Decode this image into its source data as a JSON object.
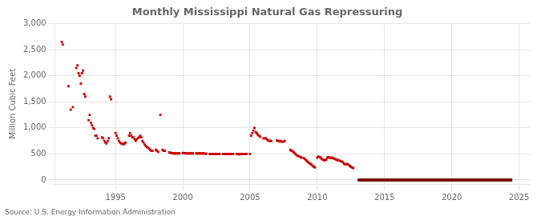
{
  "chart_data": {
    "type": "scatter",
    "title": "Monthly Mississippi Natural Gas Repressuring",
    "ylabel": "Million Cubic Feet",
    "annotations": [
      "Source: U.S. Energy Information Administration"
    ],
    "xlim": [
      1990.5,
      2025.8
    ],
    "xticks": [
      1995,
      2000,
      2005,
      2010,
      2015,
      2020,
      2025
    ],
    "ylim": [
      -80,
      3000
    ],
    "yticks": [
      0,
      500,
      {
        "value": 1000,
        "label": "1,000"
      },
      {
        "value": 1500,
        "label": "1,500"
      },
      {
        "value": 2000,
        "label": "2,000"
      },
      {
        "value": 2500,
        "label": "2,500"
      },
      {
        "value": 3000,
        "label": "3,000"
      }
    ],
    "grid": true,
    "series": [
      {
        "type": "scatter",
        "color": "#cc0000",
        "marker": "square",
        "x": [
          1991.0,
          1991.08,
          1991.5,
          1991.67,
          1991.83,
          1992.08,
          1992.17,
          1992.25,
          1992.33,
          1992.42,
          1992.5,
          1992.58,
          1992.67,
          1992.75,
          1993.0,
          1993.08,
          1993.17,
          1993.25,
          1993.33,
          1993.42,
          1993.5,
          1993.58,
          1993.67,
          1994.0,
          1994.08,
          1994.17,
          1994.25,
          1994.33,
          1994.42,
          1994.5,
          1994.58,
          1994.67,
          1995.0,
          1995.08,
          1995.17,
          1995.25,
          1995.33,
          1995.42,
          1995.5,
          1995.58,
          1995.67,
          1995.75,
          1996.0,
          1996.08,
          1996.17,
          1996.25,
          1996.33,
          1996.42,
          1996.5,
          1996.58,
          1996.67,
          1996.75,
          1996.83,
          1996.92,
          1997.0,
          1997.08,
          1997.17,
          1997.25,
          1997.33,
          1997.42,
          1997.5,
          1997.58,
          1997.67,
          1997.75,
          1998.0,
          1998.08,
          1998.17,
          1998.33,
          1998.5,
          1998.58,
          1998.67,
          1999.0,
          1999.08,
          1999.17,
          1999.25,
          1999.33,
          1999.42,
          1999.5,
          1999.58,
          1999.67,
          1999.75,
          2000.0,
          2000.08,
          2000.17,
          2000.25,
          2000.33,
          2000.42,
          2000.5,
          2000.58,
          2000.67,
          2000.75,
          2001.0,
          2001.08,
          2001.17,
          2001.25,
          2001.33,
          2001.42,
          2001.5,
          2001.58,
          2001.67,
          2001.75,
          2002.0,
          2002.08,
          2002.17,
          2002.25,
          2002.33,
          2002.42,
          2002.5,
          2002.58,
          2002.67,
          2002.75,
          2003.0,
          2003.08,
          2003.17,
          2003.25,
          2003.33,
          2003.42,
          2003.5,
          2003.58,
          2003.67,
          2003.75,
          2004.0,
          2004.08,
          2004.17,
          2004.25,
          2004.33,
          2004.42,
          2004.5,
          2004.58,
          2004.67,
          2004.75,
          2005.0,
          2005.08,
          2005.17,
          2005.25,
          2005.33,
          2005.42,
          2005.5,
          2005.58,
          2005.67,
          2005.75,
          2006.0,
          2006.08,
          2006.17,
          2006.25,
          2006.33,
          2006.42,
          2006.5,
          2006.58,
          2007.0,
          2007.08,
          2007.17,
          2007.25,
          2007.33,
          2007.42,
          2007.5,
          2007.58,
          2008.0,
          2008.08,
          2008.17,
          2008.25,
          2008.33,
          2008.42,
          2008.5,
          2008.58,
          2008.67,
          2008.75,
          2008.83,
          2009.0,
          2009.08,
          2009.17,
          2009.25,
          2009.33,
          2009.42,
          2009.5,
          2009.58,
          2009.67,
          2009.75,
          2009.83,
          2010.0,
          2010.08,
          2010.17,
          2010.25,
          2010.33,
          2010.42,
          2010.5,
          2010.58,
          2010.67,
          2010.75,
          2010.83,
          2010.92,
          2011.0,
          2011.08,
          2011.17,
          2011.25,
          2011.33,
          2011.42,
          2011.5,
          2011.58,
          2011.67,
          2011.75,
          2011.83,
          2011.92,
          2012.0,
          2012.08,
          2012.17,
          2012.25,
          2012.33,
          2012.42,
          2012.5,
          2012.58,
          2012.67
        ],
        "values": [
          2650,
          2600,
          1800,
          1350,
          1400,
          2150,
          2200,
          2050,
          2000,
          1850,
          2050,
          2100,
          1650,
          1600,
          1150,
          1250,
          1100,
          1050,
          1000,
          980,
          850,
          850,
          800,
          820,
          800,
          750,
          720,
          700,
          750,
          800,
          1600,
          1550,
          900,
          850,
          800,
          750,
          720,
          700,
          700,
          680,
          700,
          720,
          850,
          900,
          850,
          820,
          820,
          780,
          750,
          780,
          800,
          820,
          850,
          820,
          750,
          720,
          680,
          650,
          630,
          620,
          600,
          580,
          560,
          560,
          580,
          560,
          540,
          1250,
          580,
          560,
          560,
          530,
          520,
          520,
          515,
          510,
          510,
          510,
          510,
          510,
          510,
          520,
          515,
          515,
          510,
          510,
          510,
          510,
          510,
          510,
          510,
          510,
          510,
          510,
          510,
          510,
          510,
          510,
          510,
          505,
          505,
          500,
          500,
          500,
          500,
          500,
          500,
          500,
          500,
          500,
          500,
          500,
          500,
          500,
          500,
          500,
          500,
          500,
          500,
          500,
          500,
          500,
          500,
          495,
          495,
          500,
          500,
          500,
          500,
          500,
          500,
          500,
          850,
          900,
          950,
          1000,
          920,
          900,
          870,
          850,
          830,
          800,
          800,
          800,
          780,
          760,
          750,
          750,
          750,
          760,
          750,
          740,
          750,
          740,
          730,
          740,
          750,
          580,
          560,
          550,
          530,
          510,
          490,
          470,
          460,
          450,
          440,
          430,
          420,
          400,
          380,
          360,
          340,
          320,
          310,
          290,
          270,
          250,
          240,
          430,
          450,
          440,
          430,
          400,
          390,
          380,
          380,
          390,
          430,
          440,
          430,
          420,
          430,
          420,
          410,
          400,
          390,
          380,
          380,
          370,
          360,
          350,
          340,
          310,
          300,
          310,
          300,
          290,
          270,
          250,
          240,
          230
        ]
      },
      {
        "type": "line",
        "color": "#7a1010",
        "line_style": "solid",
        "x": [
          2013.0,
          2024.5
        ],
        "values": [
          0,
          0
        ]
      }
    ]
  }
}
